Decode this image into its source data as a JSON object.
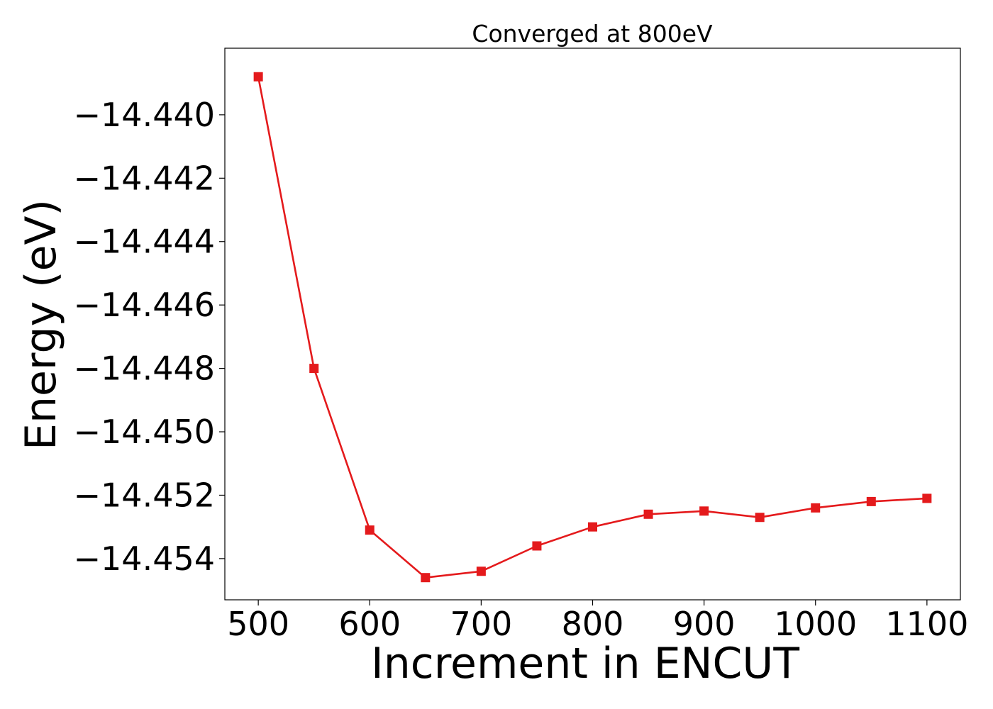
{
  "chart_data": {
    "type": "line",
    "title": "Converged at 800eV",
    "xlabel": "Increment in ENCUT",
    "ylabel": "Energy (eV)",
    "xlim": [
      470,
      1130
    ],
    "ylim": [
      -14.4553,
      -14.4379
    ],
    "xticks": [
      500,
      600,
      700,
      800,
      900,
      1000,
      1100
    ],
    "xtick_labels": [
      "500",
      "600",
      "700",
      "800",
      "900",
      "1000",
      "1100"
    ],
    "yticks": [
      -14.44,
      -14.442,
      -14.444,
      -14.446,
      -14.448,
      -14.45,
      -14.452,
      -14.454
    ],
    "ytick_labels": [
      "−14.440",
      "−14.442",
      "−14.444",
      "−14.446",
      "−14.448",
      "−14.450",
      "−14.452",
      "−14.454"
    ],
    "grid": false,
    "legend": "none",
    "marker": "square",
    "color": "#e41a1c",
    "x": [
      500,
      550,
      600,
      650,
      700,
      750,
      800,
      850,
      900,
      950,
      1000,
      1050,
      1100
    ],
    "y": [
      -14.4388,
      -14.448,
      -14.4531,
      -14.4546,
      -14.4544,
      -14.4536,
      -14.453,
      -14.4526,
      -14.4525,
      -14.4527,
      -14.4524,
      -14.4522,
      -14.4521
    ]
  }
}
